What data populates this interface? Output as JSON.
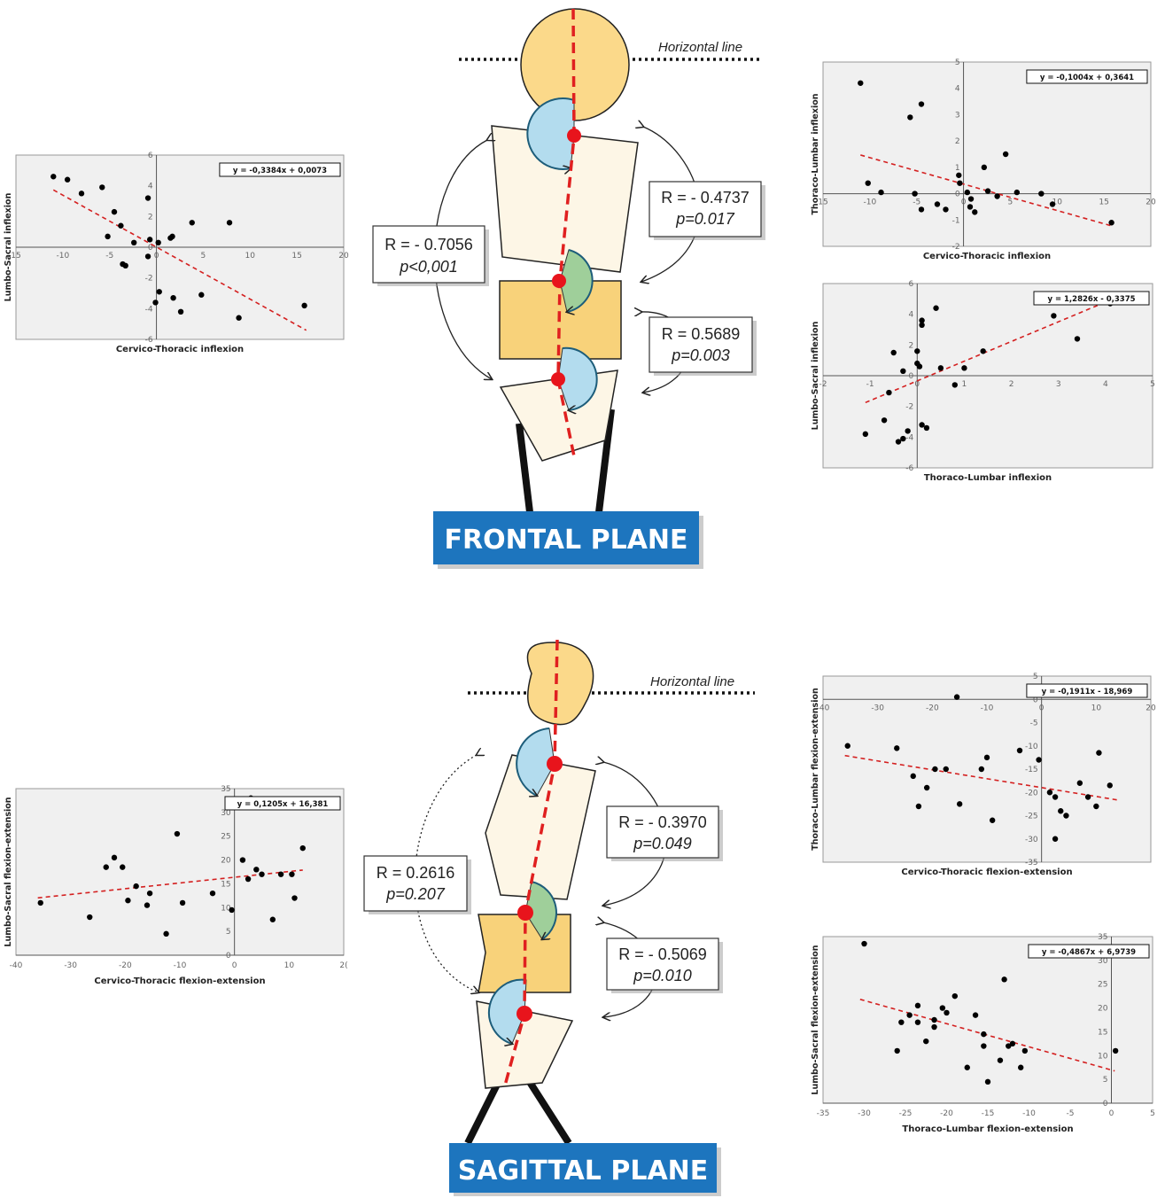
{
  "frontal": {
    "horizontal_line": "Horizontal line",
    "plane_label": "FRONTAL PLANE",
    "stats": [
      {
        "r": "R = - 0.7056",
        "p": "p<0,001"
      },
      {
        "r": "R = - 0.4737",
        "p": "p=0.017"
      },
      {
        "r": "R = 0.5689",
        "p": "p=0.003"
      }
    ]
  },
  "sagittal": {
    "horizontal_line": "Horizontal line",
    "plane_label": "SAGITTAL PLANE",
    "stats": [
      {
        "r": "R =  0.2616",
        "p": "p=0.207"
      },
      {
        "r": "R = - 0.3970",
        "p": "p=0.049"
      },
      {
        "r": "R = - 0.5069",
        "p": "p=0.010"
      }
    ]
  },
  "colors": {
    "head": "#fbd98a",
    "body": "#fdf6e6",
    "lumbar": "#f8d27a",
    "arc_blue": "#b3dcee",
    "arc_green": "#9fcf9a",
    "spine": "#e02020",
    "joint": "#e8141c",
    "label_bg": "#1d75be",
    "trend": "#d42020"
  },
  "chart_data": [
    {
      "type": "scatter",
      "xlabel": "Cervico-Thoracic inflexion",
      "ylabel": "Lumbo-Sacral inflexion",
      "equation": "y = -0,3384x + 0,0073",
      "xlim": [
        -15,
        20
      ],
      "ylim": [
        -6,
        6
      ],
      "x_ticks": [
        "15",
        "-10",
        "-5",
        "0",
        "5",
        "10",
        "15",
        "20"
      ],
      "y_ticks": [
        "6",
        "4",
        "2",
        "0",
        "-2",
        "-4",
        "-6"
      ],
      "trend": {
        "slope": -0.3384,
        "intercept": 0.0073,
        "x_range": [
          -11,
          16
        ]
      },
      "points": [
        [
          -11,
          4.6
        ],
        [
          -9.5,
          4.4
        ],
        [
          -8,
          3.5
        ],
        [
          -5.8,
          3.9
        ],
        [
          -4.5,
          2.3
        ],
        [
          -3.8,
          1.4
        ],
        [
          -5.2,
          0.7
        ],
        [
          -3.6,
          -1.1
        ],
        [
          -3.3,
          -1.2
        ],
        [
          -2.4,
          0.3
        ],
        [
          -0.9,
          3.2
        ],
        [
          -0.7,
          0.5
        ],
        [
          0.2,
          0.3
        ],
        [
          1.5,
          0.6
        ],
        [
          1.7,
          0.7
        ],
        [
          3.8,
          1.6
        ],
        [
          7.8,
          1.6
        ],
        [
          -0.9,
          -0.6
        ],
        [
          0.3,
          -2.9
        ],
        [
          -0.1,
          -3.6
        ],
        [
          1.8,
          -3.3
        ],
        [
          2.6,
          -4.2
        ],
        [
          4.8,
          -3.1
        ],
        [
          8.8,
          -4.6
        ],
        [
          15.8,
          -3.8
        ]
      ]
    },
    {
      "type": "scatter",
      "xlabel": "Cervico-Thoracic inflexion",
      "ylabel": "Thoraco-Lumbar inflexion",
      "equation": "y = -0,1004x + 0,3641",
      "xlim": [
        -15,
        20
      ],
      "ylim": [
        -2,
        5
      ],
      "x_ticks": [
        "15",
        "-10",
        "-5",
        "0",
        "5",
        "10",
        "15",
        "20"
      ],
      "y_ticks": [
        "5",
        "4",
        "3",
        "2",
        "1",
        "0",
        "-1",
        "-2"
      ],
      "trend": {
        "slope": -0.1004,
        "intercept": 0.3641,
        "x_range": [
          -11,
          16
        ]
      },
      "points": [
        [
          -11,
          4.2
        ],
        [
          -10.2,
          0.4
        ],
        [
          -8.8,
          0.05
        ],
        [
          -5.7,
          2.9
        ],
        [
          -4.5,
          3.4
        ],
        [
          -5.2,
          0.0
        ],
        [
          -4.5,
          -0.6
        ],
        [
          -2.8,
          -0.4
        ],
        [
          -1.9,
          -0.6
        ],
        [
          -0.5,
          0.7
        ],
        [
          -0.4,
          0.4
        ],
        [
          0.4,
          0.05
        ],
        [
          0.8,
          -0.2
        ],
        [
          0.7,
          -0.5
        ],
        [
          1.2,
          -0.7
        ],
        [
          2.2,
          1.0
        ],
        [
          2.6,
          0.1
        ],
        [
          3.6,
          -0.1
        ],
        [
          4.5,
          1.5
        ],
        [
          5.7,
          0.05
        ],
        [
          8.3,
          0.0
        ],
        [
          9.5,
          -0.4
        ],
        [
          15.8,
          -1.1
        ]
      ]
    },
    {
      "type": "scatter",
      "xlabel": "Thoraco-Lumbar inflexion",
      "ylabel": "Lumbo-Sacral inflexion",
      "equation": "y = 1,2826x - 0,3375",
      "xlim": [
        -2,
        5
      ],
      "ylim": [
        -6,
        6
      ],
      "x_ticks": [
        "-2",
        "-1",
        "0",
        "1",
        "2",
        "3",
        "4",
        "5"
      ],
      "y_ticks": [
        "6",
        "4",
        "2",
        "0",
        "-2",
        "-4",
        "-6"
      ],
      "trend": {
        "slope": 1.2826,
        "intercept": -0.3375,
        "x_range": [
          -1.1,
          4.2
        ]
      },
      "points": [
        [
          -1.1,
          -3.8
        ],
        [
          -0.7,
          -2.9
        ],
        [
          -0.6,
          -1.1
        ],
        [
          -0.5,
          1.5
        ],
        [
          -0.3,
          0.3
        ],
        [
          -0.4,
          -4.3
        ],
        [
          -0.3,
          -4.1
        ],
        [
          -0.2,
          -3.6
        ],
        [
          0.0,
          1.6
        ],
        [
          0.0,
          0.8
        ],
        [
          0.05,
          0.6
        ],
        [
          0.1,
          3.3
        ],
        [
          0.1,
          3.6
        ],
        [
          0.1,
          -3.2
        ],
        [
          0.2,
          -3.4
        ],
        [
          0.4,
          4.4
        ],
        [
          0.5,
          0.5
        ],
        [
          0.8,
          -0.6
        ],
        [
          1.0,
          0.5
        ],
        [
          1.4,
          1.6
        ],
        [
          2.9,
          3.9
        ],
        [
          3.4,
          2.4
        ],
        [
          4.1,
          4.7
        ]
      ]
    },
    {
      "type": "scatter",
      "xlabel": "Cervico-Thoracic flexion-extension",
      "ylabel": "Lumbo-Sacral flexion-extension",
      "equation": "y = 0,1205x + 16,381",
      "xlim": [
        -40,
        20
      ],
      "ylim": [
        0,
        35
      ],
      "x_ticks": [
        "-40",
        "-30",
        "-20",
        "-10",
        "0",
        "10",
        "2("
      ],
      "y_ticks": [
        "35",
        "30",
        "25",
        "20",
        "15",
        "10",
        "5",
        "0"
      ],
      "trend": {
        "slope": 0.1205,
        "intercept": 16.381,
        "x_range": [
          -36,
          12.5
        ]
      },
      "points": [
        [
          -35.5,
          11
        ],
        [
          -26.5,
          8
        ],
        [
          -23.5,
          18.5
        ],
        [
          -22,
          20.5
        ],
        [
          -20.5,
          18.5
        ],
        [
          -19.5,
          11.5
        ],
        [
          -18,
          14.5
        ],
        [
          -16,
          10.5
        ],
        [
          -15.5,
          13
        ],
        [
          -12.5,
          4.5
        ],
        [
          -10.5,
          25.5
        ],
        [
          -9.5,
          11
        ],
        [
          -4,
          13
        ],
        [
          -0.5,
          9.5
        ],
        [
          1.5,
          20
        ],
        [
          2.5,
          16
        ],
        [
          3,
          33
        ],
        [
          4,
          18
        ],
        [
          5,
          17
        ],
        [
          7,
          7.5
        ],
        [
          8.5,
          17
        ],
        [
          10.5,
          17
        ],
        [
          11,
          12
        ],
        [
          12.5,
          22.5
        ]
      ]
    },
    {
      "type": "scatter",
      "xlabel": "Cervico-Thoracic flexion-extension",
      "ylabel": "Thoraco-Lumbar flexion-extension",
      "equation": "y = -0,1911x - 18,969",
      "xlim": [
        -40,
        20
      ],
      "ylim": [
        -35,
        5
      ],
      "x_ticks": [
        "-40",
        "-30",
        "-20",
        "-10",
        "0",
        "10",
        "20"
      ],
      "y_ticks": [
        "5",
        "0",
        "-5",
        "-10",
        "-15",
        "-20",
        "-25",
        "-30",
        "-35"
      ],
      "trend": {
        "slope": -0.1911,
        "intercept": -18.969,
        "x_range": [
          -36,
          14
        ]
      },
      "points": [
        [
          -35.5,
          -10
        ],
        [
          -26.5,
          -10.5
        ],
        [
          -23.5,
          -16.5
        ],
        [
          -22.5,
          -23
        ],
        [
          -21,
          -19
        ],
        [
          -19.5,
          -15
        ],
        [
          -17.5,
          -15
        ],
        [
          -15.5,
          0.5
        ],
        [
          -15,
          -22.5
        ],
        [
          -11,
          -15
        ],
        [
          -10,
          -12.5
        ],
        [
          -9,
          -26
        ],
        [
          -4,
          -11
        ],
        [
          -0.5,
          -13
        ],
        [
          1.5,
          -20
        ],
        [
          2.5,
          -21
        ],
        [
          2.5,
          -30
        ],
        [
          3.5,
          -24
        ],
        [
          4.5,
          -25
        ],
        [
          7,
          -18
        ],
        [
          8.5,
          -21
        ],
        [
          10,
          -23
        ],
        [
          10.5,
          -11.5
        ],
        [
          12.5,
          -18.5
        ]
      ]
    },
    {
      "type": "scatter",
      "xlabel": "Thoraco-Lumbar flexion-extension",
      "ylabel": "Lumbo-Sacral flexion-extension",
      "equation": "y = -0,4867x + 6,9739",
      "xlim": [
        -35,
        5
      ],
      "ylim": [
        0,
        35
      ],
      "x_ticks": [
        "-35",
        "-30",
        "-25",
        "-20",
        "-15",
        "-10",
        "-5",
        "0",
        "5"
      ],
      "y_ticks": [
        "35",
        "30",
        "25",
        "20",
        "15",
        "10",
        "5",
        "0"
      ],
      "trend": {
        "slope": -0.4867,
        "intercept": 6.9739,
        "x_range": [
          -30.5,
          0.4
        ]
      },
      "points": [
        [
          -30,
          33.5
        ],
        [
          -26,
          11
        ],
        [
          -25.5,
          17
        ],
        [
          -24.5,
          18.5
        ],
        [
          -23.5,
          20.5
        ],
        [
          -23.5,
          17
        ],
        [
          -22.5,
          13
        ],
        [
          -21.5,
          16
        ],
        [
          -21.5,
          17.5
        ],
        [
          -20.5,
          20
        ],
        [
          -20,
          19
        ],
        [
          -19,
          22.5
        ],
        [
          -17.5,
          7.5
        ],
        [
          -16.5,
          18.5
        ],
        [
          -15.5,
          14.5
        ],
        [
          -15.5,
          12
        ],
        [
          -15,
          4.5
        ],
        [
          -13.5,
          9
        ],
        [
          -13,
          26
        ],
        [
          -12.5,
          12
        ],
        [
          -12,
          12.5
        ],
        [
          -11,
          7.5
        ],
        [
          -10.5,
          11
        ],
        [
          0.5,
          11
        ]
      ]
    }
  ]
}
